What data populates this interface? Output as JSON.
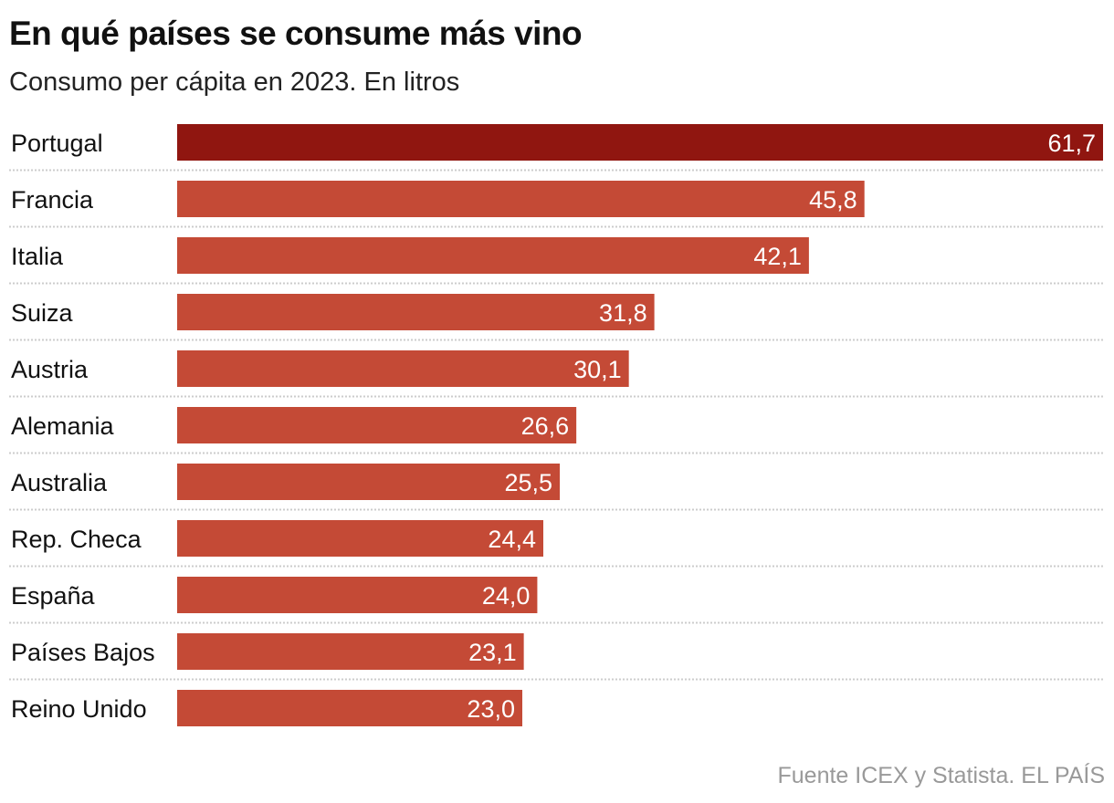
{
  "chart_data": {
    "type": "bar",
    "orientation": "horizontal",
    "title": "En qué países se consume más vino",
    "subtitle": "Consumo per cápita en 2023. En litros",
    "categories": [
      "Portugal",
      "Francia",
      "Italia",
      "Suiza",
      "Austria",
      "Alemania",
      "Australia",
      "Rep. Checa",
      "España",
      "Países Bajos",
      "Reino Unido"
    ],
    "values": [
      61.7,
      45.8,
      42.1,
      31.8,
      30.1,
      26.6,
      25.5,
      24.4,
      24.0,
      23.1,
      23.0
    ],
    "value_labels": [
      "61,7",
      "45,8",
      "42,1",
      "31,8",
      "30,1",
      "26,6",
      "25,5",
      "24,4",
      "24,0",
      "23,1",
      "23,0"
    ],
    "highlight_index": 0,
    "colors": {
      "highlight": "#901610",
      "default": "#c44a36",
      "separator": "#cccccc"
    },
    "xlim": [
      0,
      61.7
    ],
    "grid": false,
    "source": "Fuente ICEX y Statista. EL PAÍS"
  }
}
